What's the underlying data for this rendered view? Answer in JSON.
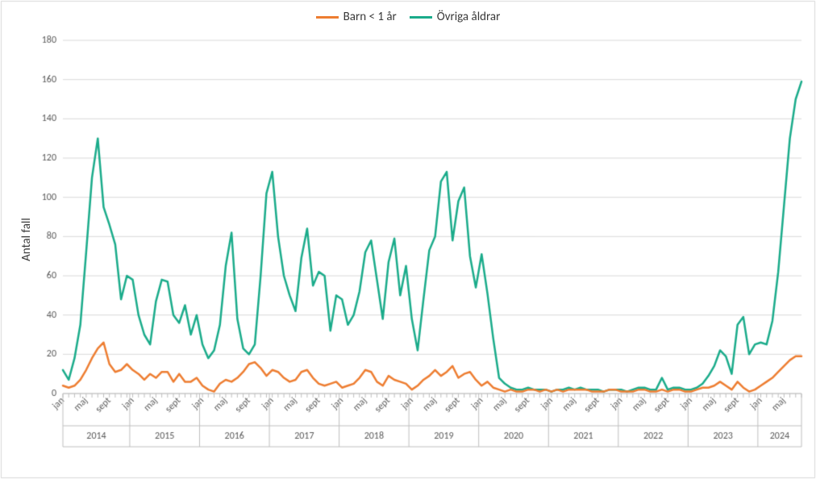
{
  "chart": {
    "type": "line",
    "title": "",
    "y_axis_title": "Antal fall",
    "background_color": "#ffffff",
    "plot_border_color": "#d9d9d9",
    "outer_border_color": "#d9d9d9",
    "grid_color": "#d9d9d9",
    "axis_line_color": "#bfbfbf",
    "tick_label_color": "#595959",
    "axis_title_color": "#3a3a3a",
    "font_family": "Calibri, Arial, sans-serif",
    "tick_fontsize": 12,
    "axis_title_fontsize": 15,
    "legend_fontsize": 15,
    "line_width": 2.5,
    "y_axis": {
      "min": 0,
      "max": 180,
      "step": 20
    },
    "x_axis": {
      "months_shown": [
        "jan",
        "maj",
        "sep"
      ],
      "month_label_sep_is_sept": true,
      "tick_label_rotation_deg": -45
    },
    "year_groups": [
      "2014",
      "2015",
      "2016",
      "2017",
      "2018",
      "2019",
      "2020",
      "2021",
      "2022",
      "2023",
      "2024"
    ],
    "legend": {
      "items": [
        {
          "key": "barn",
          "label": "Barn < 1 år"
        },
        {
          "key": "ovriga",
          "label": "Övriga åldrar"
        }
      ]
    },
    "series": {
      "barn": {
        "label": "Barn < 1 år",
        "color": "#ed7d31",
        "values": [
          4,
          3,
          4,
          7,
          12,
          18,
          23,
          26,
          15,
          11,
          12,
          15,
          12,
          10,
          7,
          10,
          8,
          11,
          11,
          6,
          10,
          6,
          6,
          8,
          4,
          2,
          1,
          5,
          7,
          6,
          8,
          11,
          15,
          16,
          13,
          9,
          12,
          11,
          8,
          6,
          7,
          11,
          12,
          8,
          5,
          4,
          5,
          6,
          3,
          4,
          5,
          8,
          12,
          11,
          6,
          4,
          9,
          7,
          6,
          5,
          2,
          4,
          7,
          9,
          12,
          9,
          11,
          14,
          8,
          10,
          11,
          7,
          4,
          6,
          3,
          2,
          1,
          2,
          1,
          1,
          2,
          2,
          1,
          2,
          1,
          2,
          1,
          2,
          2,
          2,
          2,
          1,
          1,
          1,
          2,
          2,
          1,
          1,
          1,
          2,
          2,
          1,
          1,
          2,
          1,
          2,
          2,
          1,
          1,
          2,
          3,
          3,
          4,
          6,
          4,
          2,
          6,
          3,
          1,
          2,
          4,
          6,
          8,
          11,
          14,
          17,
          19,
          19
        ]
      },
      "ovriga": {
        "label": "Övriga åldrar",
        "color": "#1aab8a",
        "values": [
          12,
          7,
          18,
          35,
          72,
          110,
          130,
          95,
          86,
          76,
          48,
          60,
          58,
          40,
          30,
          25,
          47,
          58,
          57,
          40,
          36,
          45,
          30,
          40,
          25,
          18,
          22,
          35,
          65,
          82,
          38,
          23,
          20,
          25,
          60,
          102,
          113,
          80,
          60,
          50,
          42,
          69,
          84,
          55,
          62,
          60,
          32,
          50,
          48,
          35,
          40,
          52,
          72,
          78,
          58,
          38,
          67,
          79,
          50,
          65,
          38,
          22,
          48,
          73,
          80,
          108,
          113,
          78,
          98,
          105,
          70,
          54,
          71,
          51,
          28,
          8,
          5,
          3,
          2,
          2,
          3,
          2,
          2,
          2,
          1,
          2,
          2,
          3,
          2,
          3,
          2,
          2,
          2,
          1,
          2,
          2,
          2,
          1,
          2,
          3,
          3,
          2,
          2,
          8,
          2,
          3,
          3,
          2,
          2,
          3,
          5,
          9,
          14,
          22,
          19,
          10,
          35,
          39,
          20,
          25,
          26,
          25,
          37,
          62,
          96,
          130,
          150,
          159
        ]
      }
    }
  }
}
